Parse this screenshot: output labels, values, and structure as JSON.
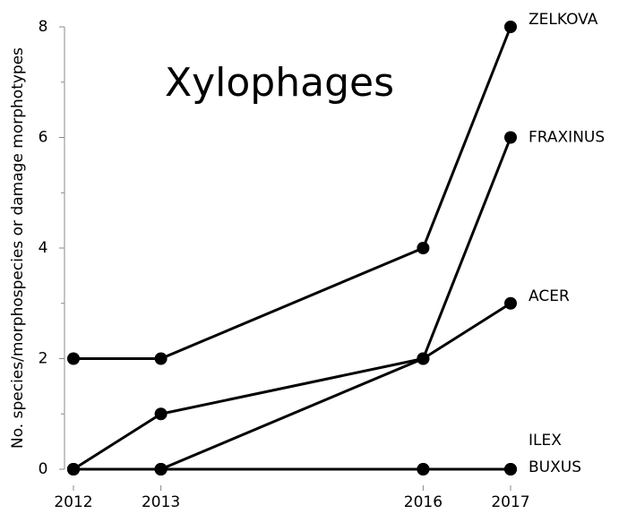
{
  "chart_data": {
    "type": "line",
    "title": "Xylophages",
    "y_label": "No. species/morphospecies or damage morphotypes",
    "x": [
      2012,
      2013,
      2016,
      2017
    ],
    "series": [
      {
        "name": "ZELKOVA",
        "color": "#000000",
        "values": [
          2,
          2,
          4,
          8
        ]
      },
      {
        "name": "FRAXINUS",
        "color": "#000000",
        "values": [
          0,
          0,
          2,
          6
        ]
      },
      {
        "name": "ACER",
        "color": "#000000",
        "values": [
          0,
          1,
          2,
          3
        ]
      },
      {
        "name": "ILEX",
        "color": "#000000",
        "values": [
          0,
          0,
          0,
          0
        ]
      },
      {
        "name": "BUXUS",
        "color": "#000000",
        "values": [
          0,
          0,
          0,
          0
        ]
      }
    ],
    "xlim": [
      2012,
      2017
    ],
    "xticks": [
      2012,
      2013,
      2016,
      2017
    ],
    "ylim": [
      0,
      8
    ],
    "yticks": [
      0,
      2,
      4,
      6,
      8
    ],
    "yminorticks": [
      1,
      3,
      5,
      7
    ],
    "grid": false
  }
}
